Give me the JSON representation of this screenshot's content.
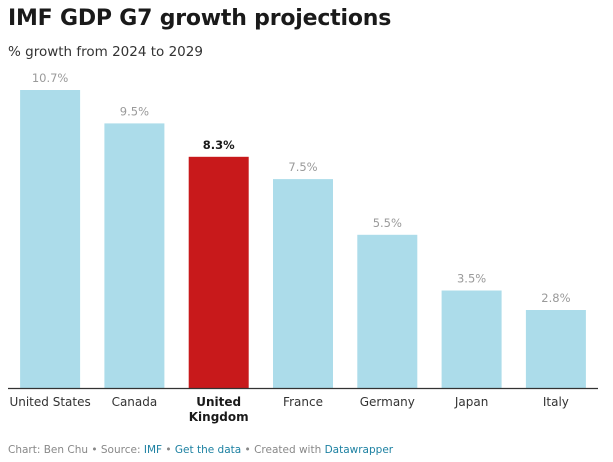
{
  "header": {
    "title": "IMF GDP G7 growth projections",
    "subtitle": "% growth from 2024 to 2029"
  },
  "chart_data": {
    "type": "bar",
    "title": "IMF GDP G7 growth projections",
    "subtitle": "% growth from 2024 to 2029",
    "categories": [
      "United States",
      "Canada",
      "United Kingdom",
      "France",
      "Germany",
      "Japan",
      "Italy"
    ],
    "category_display": [
      [
        "United States"
      ],
      [
        "Canada"
      ],
      [
        "United",
        "Kingdom"
      ],
      [
        "France"
      ],
      [
        "Germany"
      ],
      [
        "Japan"
      ],
      [
        "Italy"
      ]
    ],
    "values": [
      10.7,
      9.5,
      8.3,
      7.5,
      5.5,
      3.5,
      2.8
    ],
    "value_labels": [
      "10.7%",
      "9.5%",
      "8.3%",
      "7.5%",
      "5.5%",
      "3.5%",
      "2.8%"
    ],
    "highlight_index": 2,
    "ylim": [
      0,
      10.7
    ],
    "grid": false,
    "xlabel": "",
    "ylabel": "",
    "colors": {
      "default": "#acdcea",
      "highlight": "#c8191b",
      "baseline": "#333333"
    }
  },
  "footer": {
    "prefix": "Chart: Ben Chu • Source: ",
    "source": "IMF",
    "sep1": " • ",
    "get_data": "Get the data",
    "sep2": " • Created with ",
    "tool": "Datawrapper"
  }
}
